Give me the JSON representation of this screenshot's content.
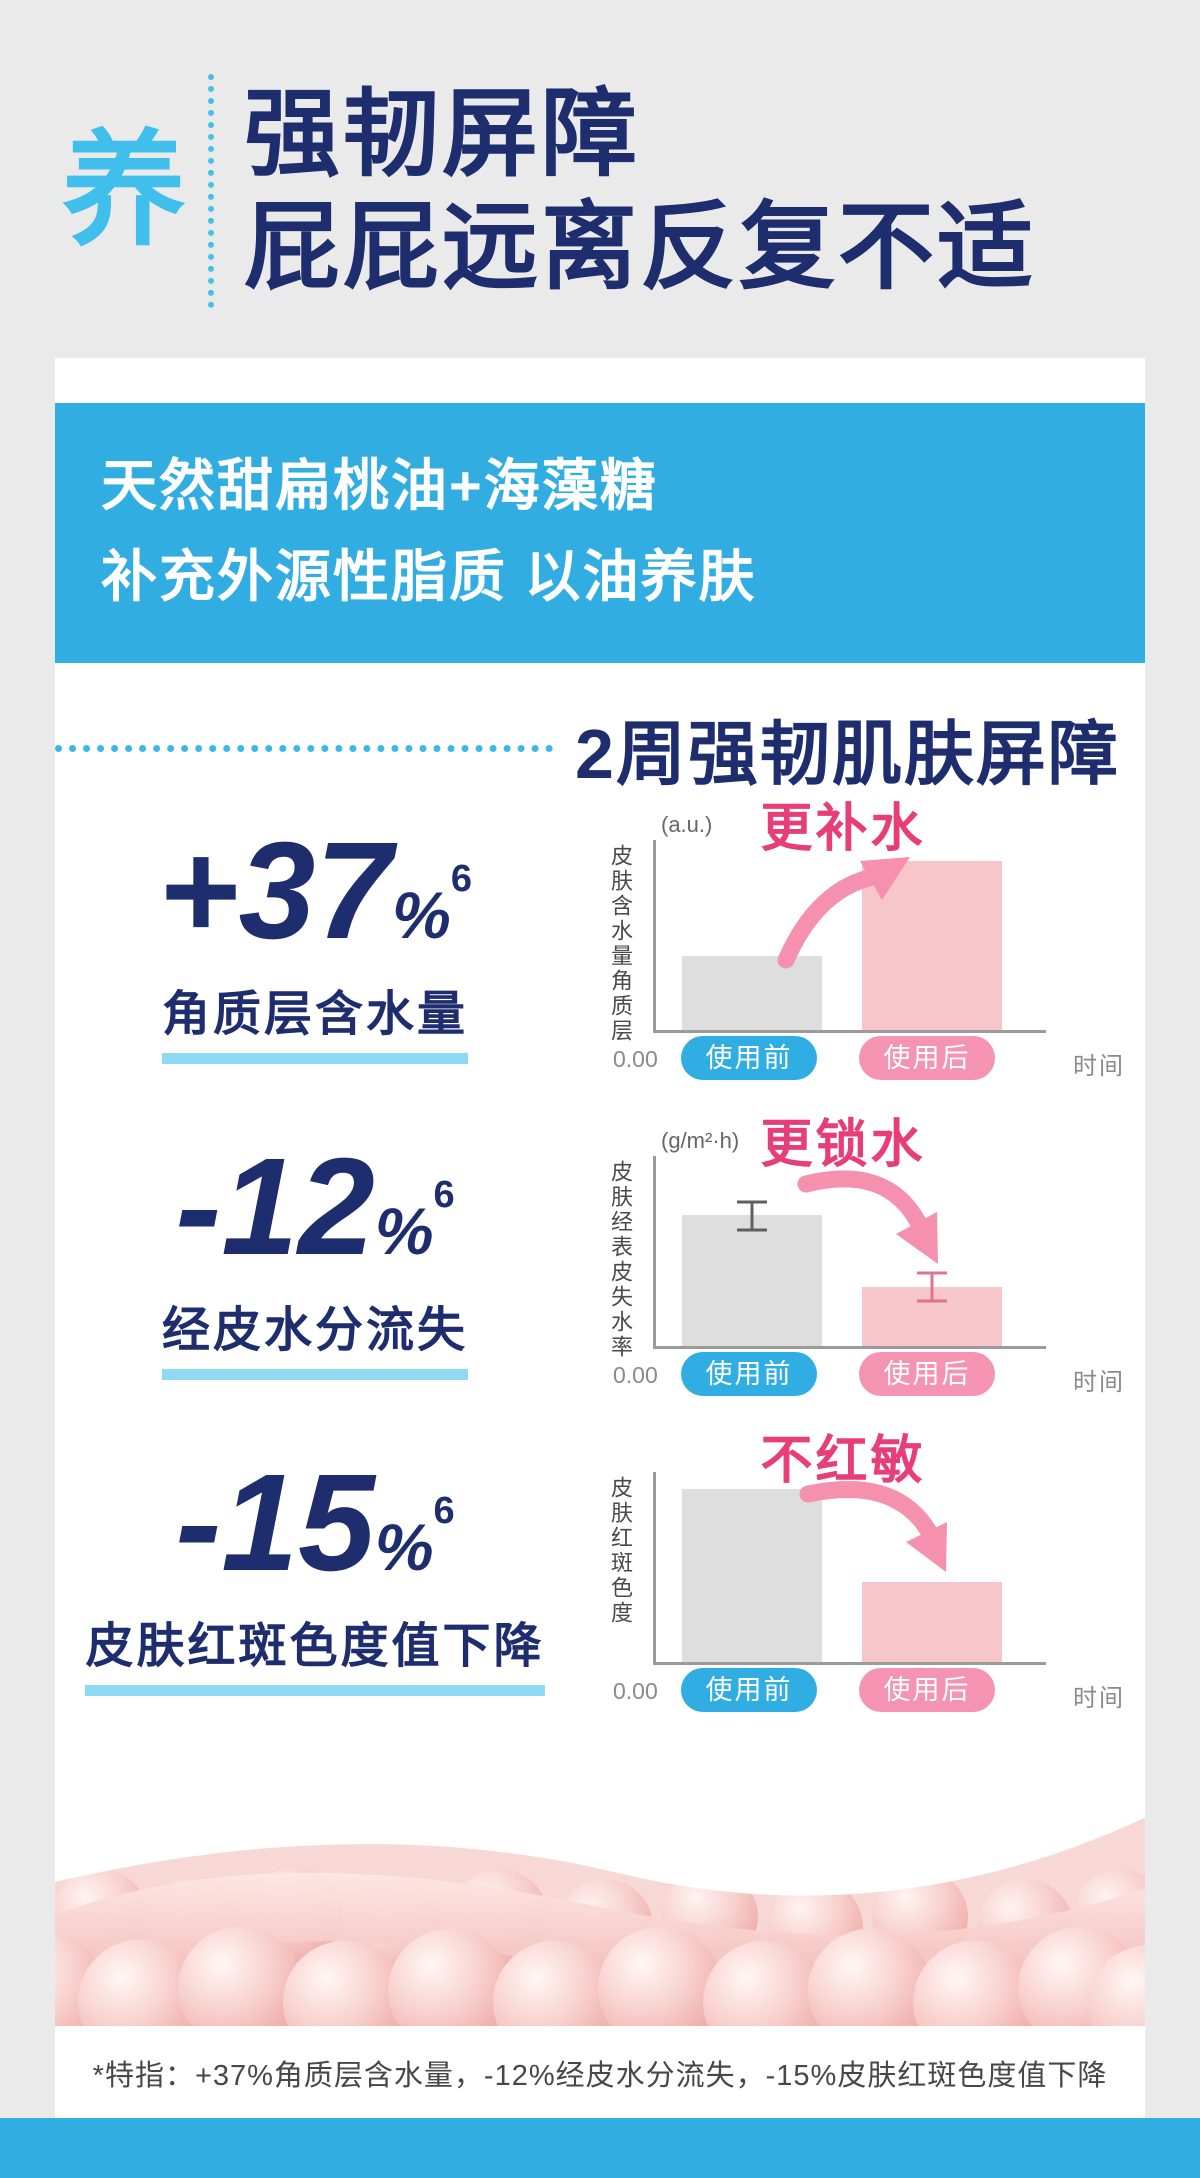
{
  "colors": {
    "accent_blue": "#31ade1",
    "badge_cyan": "#41bfec",
    "navy": "#1e2d6e",
    "pink_text": "#e83e78",
    "arrow_pink": "#f591ae",
    "bar_gray": "#dedede",
    "bar_pink": "#f6c6cb",
    "pill_pink": "#f493b2",
    "underline_blue": "#8ed9f4"
  },
  "header": {
    "badge": "养",
    "title_line1": "强韧屏障",
    "title_line2": "屁屁远离反复不适"
  },
  "banner": {
    "line1": "天然甜扁桃油+海藻糖",
    "line2": "补充外源性脂质 以油养肤"
  },
  "section": {
    "title": "2周强韧肌肤屏障"
  },
  "stats": [
    {
      "value": "+37",
      "unit": "%",
      "sup": "6",
      "label": "角质层含水量"
    },
    {
      "value": "-12",
      "unit": "%",
      "sup": "6",
      "label": "经皮水分流失"
    },
    {
      "value": "-15",
      "unit": "%",
      "sup": "6",
      "label": "皮肤红斑色度值下降"
    }
  ],
  "chart_data": [
    {
      "type": "bar",
      "annotation": "更补水",
      "unit": "(a.u.)",
      "ylabel": "皮肤含水量角质层",
      "xlabel": "时间",
      "origin": "0.00",
      "categories": [
        "使用前",
        "使用后"
      ],
      "values_pct": [
        39,
        89
      ],
      "trend": "up",
      "error_bars": false,
      "legend": "none",
      "grid": false
    },
    {
      "type": "bar",
      "annotation": "更锁水",
      "unit": "(g/m²·h)",
      "ylabel": "皮肤经表皮失水率",
      "xlabel": "时间",
      "origin": "0.00",
      "categories": [
        "使用前",
        "使用后"
      ],
      "values_pct": [
        69,
        31
      ],
      "trend": "down",
      "error_bars": true,
      "legend": "none",
      "grid": false
    },
    {
      "type": "bar",
      "annotation": "不红敏",
      "ylabel": "皮肤红斑色度",
      "xlabel": "时间",
      "origin": "0.00",
      "categories": [
        "使用前",
        "使用后"
      ],
      "values_pct": [
        91,
        42
      ],
      "trend": "down",
      "error_bars": false,
      "legend": "none",
      "grid": false
    }
  ],
  "footnote": "*特指：+37%角质层含水量，-12%经皮水分流失，-15%皮肤红斑色度值下降"
}
